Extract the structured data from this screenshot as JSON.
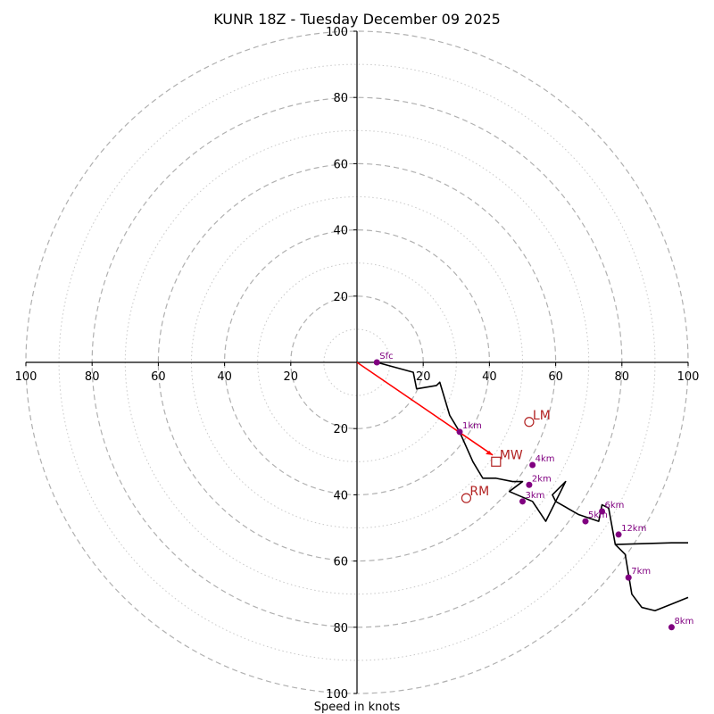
{
  "chart_data": {
    "type": "hodograph",
    "title": "KUNR 18Z - Tuesday December 09 2025",
    "xlabel": "Speed in knots",
    "xlim": [
      -100,
      100
    ],
    "ylim": [
      -100,
      100
    ],
    "ring_major": [
      20,
      40,
      60,
      80,
      100
    ],
    "ring_minor": [
      10,
      30,
      50,
      70,
      90
    ],
    "x_tick_labels": [
      "100",
      "80",
      "60",
      "40",
      "20",
      "20",
      "40",
      "60",
      "80",
      "100"
    ],
    "x_tick_values": [
      -100,
      -80,
      -60,
      -40,
      -20,
      20,
      40,
      60,
      80,
      100
    ],
    "y_tick_labels": [
      "100",
      "80",
      "60",
      "40",
      "20",
      "20",
      "40",
      "60",
      "80",
      "100"
    ],
    "y_tick_values": [
      100,
      80,
      60,
      40,
      20,
      -20,
      -40,
      -60,
      -80,
      -100
    ],
    "trace": {
      "u": [
        6,
        17,
        18,
        24,
        25,
        28,
        31,
        35,
        38,
        42,
        47,
        50,
        46,
        53,
        57,
        63,
        59,
        60,
        67,
        73,
        74,
        76,
        78,
        81,
        83,
        86,
        90,
        95,
        100
      ],
      "v": [
        0,
        -3,
        -8,
        -7,
        -6,
        -16,
        -21,
        -30,
        -35,
        -35,
        -36,
        -36,
        -39,
        -42,
        -48,
        -36,
        -40,
        -42,
        -46,
        -48,
        -43,
        -44,
        -55,
        -58,
        -70,
        -74,
        -75,
        -73,
        -71
      ]
    },
    "trace_tail": {
      "u": [
        78,
        95,
        100
      ],
      "v": [
        -55,
        -54.5,
        -54.5
      ]
    },
    "height_markers": [
      {
        "label": "Sfc",
        "u": 6,
        "v": 0
      },
      {
        "label": "1km",
        "u": 31,
        "v": -21
      },
      {
        "label": "2km",
        "u": 52,
        "v": -37
      },
      {
        "label": "3km",
        "u": 50,
        "v": -42
      },
      {
        "label": "4km",
        "u": 53,
        "v": -31
      },
      {
        "label": "5km",
        "u": 69,
        "v": -48
      },
      {
        "label": "6km",
        "u": 74,
        "v": -45
      },
      {
        "label": "7km",
        "u": 82,
        "v": -65
      },
      {
        "label": "8km",
        "u": 95,
        "v": -80
      },
      {
        "label": "12km",
        "u": 79,
        "v": -52
      }
    ],
    "storm_motions": [
      {
        "label": "LM",
        "u": 52,
        "v": -18,
        "marker": "circle"
      },
      {
        "label": "MW",
        "u": 42,
        "v": -30,
        "marker": "square"
      },
      {
        "label": "RM",
        "u": 33,
        "v": -41,
        "marker": "circle"
      }
    ],
    "shear_vector": {
      "u0": 0,
      "v0": 0,
      "u1": 41,
      "v1": -28
    },
    "colors": {
      "trace": "#000000",
      "marker": "#800080",
      "storm": "#b22222",
      "shear": "#ff0000",
      "ring": "#b0b0b0"
    }
  }
}
